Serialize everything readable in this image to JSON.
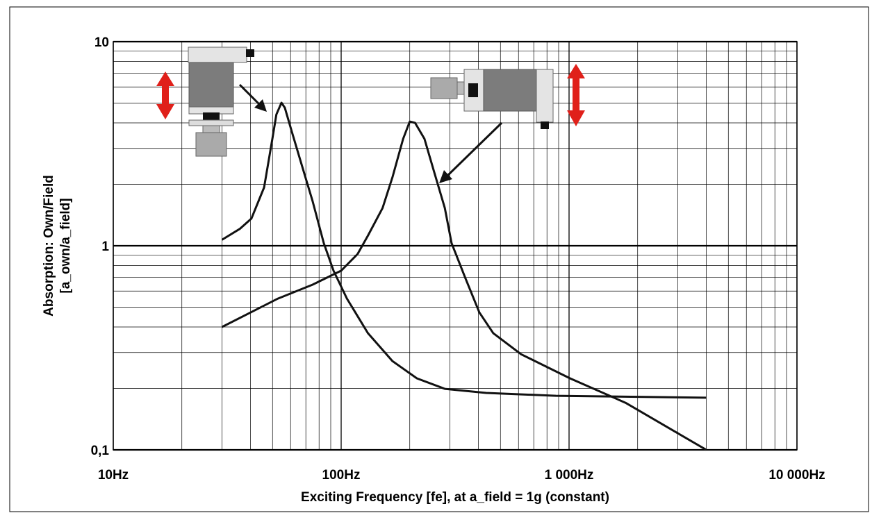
{
  "chart_data": {
    "type": "line",
    "x_label": "Exciting Frequency [fe], at a_field = 1g (constant)",
    "y_label": [
      "Absorption: Own/Field",
      "[a_own/a_field]"
    ],
    "xscale": "log",
    "yscale": "log",
    "grid": true,
    "minor_grid": true,
    "xlim": [
      10,
      10000
    ],
    "ylim": [
      0.1,
      10
    ],
    "xticks": [
      {
        "value": 10,
        "label": "10Hz"
      },
      {
        "value": 100,
        "label": "100Hz"
      },
      {
        "value": 1000,
        "label": "1 000Hz"
      },
      {
        "value": 10000,
        "label": "10 000Hz"
      }
    ],
    "yticks": [
      {
        "value": 0.1,
        "label": "0,1"
      },
      1,
      10
    ],
    "series": [
      {
        "color": "#111111",
        "x": [
          30,
          35.9,
          40.4,
          45.9,
          49.9,
          52,
          54.7,
          56.6,
          60.8,
          67.5,
          75,
          83.9,
          92.6,
          106,
          131,
          168,
          215,
          285,
          433,
          875,
          4000
        ],
        "values": [
          1.07,
          1.21,
          1.36,
          1.93,
          3.34,
          4.4,
          5.02,
          4.75,
          3.61,
          2.44,
          1.65,
          1.03,
          0.755,
          0.551,
          0.373,
          0.272,
          0.224,
          0.199,
          0.19,
          0.184,
          0.18
        ]
      },
      {
        "color": "#111111",
        "x": [
          30,
          52.8,
          75,
          100,
          118,
          131,
          152,
          168,
          187,
          200,
          211,
          232,
          257,
          285,
          305,
          350,
          404,
          465,
          616,
          1010,
          1770,
          4000
        ],
        "values": [
          0.4,
          0.551,
          0.645,
          0.755,
          0.91,
          1.12,
          1.53,
          2.17,
          3.34,
          4.06,
          4.0,
          3.34,
          2.26,
          1.53,
          1.03,
          0.698,
          0.471,
          0.373,
          0.294,
          0.224,
          0.17,
          0.1
        ]
      }
    ]
  }
}
